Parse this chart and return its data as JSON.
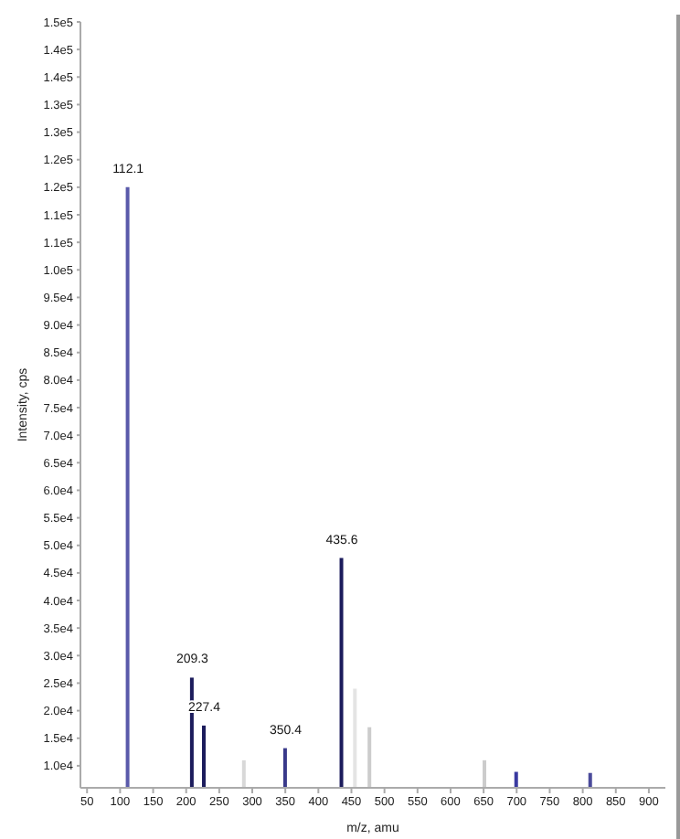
{
  "chart_data": {
    "type": "bar",
    "xlabel": "m/z, amu",
    "ylabel": "Intensity, cps",
    "x": [
      112.1,
      209.3,
      227.4,
      288,
      350.4,
      435.6,
      456,
      478,
      652,
      700,
      812
    ],
    "values": [
      115000,
      26000,
      17300,
      11000,
      13200,
      47700,
      24000,
      17000,
      11000,
      8900,
      8700
    ],
    "colors": [
      "#5a5aaa",
      "#1c1c5c",
      "#1c1c5c",
      "#d8d8d8",
      "#3a3a8a",
      "#1c1c5c",
      "#e4e4e4",
      "#cccccc",
      "#cccccc",
      "#3a3aa0",
      "#4a4a9a"
    ],
    "annotations": [
      {
        "text": "112.1",
        "x": 112.1,
        "y": 115000
      },
      {
        "text": "209.3",
        "x": 209.3,
        "y": 26000
      },
      {
        "text": "227.4",
        "x": 227.4,
        "y": 17300
      },
      {
        "text": "350.4",
        "x": 350.4,
        "y": 13200
      },
      {
        "text": "435.6",
        "x": 435.6,
        "y": 47700
      }
    ],
    "xlim": [
      40,
      925
    ],
    "xticks": [
      50,
      100,
      150,
      200,
      250,
      300,
      350,
      400,
      450,
      500,
      550,
      600,
      650,
      700,
      750,
      800,
      850,
      900
    ],
    "ylim": [
      6000,
      145000
    ],
    "yticks": [
      {
        "value": 10000,
        "label": "1.0e4"
      },
      {
        "value": 15000,
        "label": "1.5e4"
      },
      {
        "value": 20000,
        "label": "2.0e4"
      },
      {
        "value": 25000,
        "label": "2.5e4"
      },
      {
        "value": 30000,
        "label": "3.0e4"
      },
      {
        "value": 35000,
        "label": "3.5e4"
      },
      {
        "value": 40000,
        "label": "4.0e4"
      },
      {
        "value": 45000,
        "label": "4.5e4"
      },
      {
        "value": 50000,
        "label": "5.0e4"
      },
      {
        "value": 55000,
        "label": "5.5e4"
      },
      {
        "value": 60000,
        "label": "6.0e4"
      },
      {
        "value": 65000,
        "label": "6.5e4"
      },
      {
        "value": 70000,
        "label": "7.0e4"
      },
      {
        "value": 75000,
        "label": "7.5e4"
      },
      {
        "value": 80000,
        "label": "8.0e4"
      },
      {
        "value": 85000,
        "label": "8.5e4"
      },
      {
        "value": 90000,
        "label": "9.0e4"
      },
      {
        "value": 95000,
        "label": "9.5e4"
      },
      {
        "value": 100000,
        "label": "1.0e5"
      },
      {
        "value": 105000,
        "label": "1.1e5"
      },
      {
        "value": 110000,
        "label": "1.1e5"
      },
      {
        "value": 115000,
        "label": "1.2e5"
      },
      {
        "value": 120000,
        "label": "1.2e5"
      },
      {
        "value": 125000,
        "label": "1.3e5"
      },
      {
        "value": 130000,
        "label": "1.3e5"
      },
      {
        "value": 135000,
        "label": "1.4e5"
      },
      {
        "value": 140000,
        "label": "1.4e5"
      },
      {
        "value": 145000,
        "label": "1.5e5"
      }
    ],
    "grid": false,
    "legend": false
  }
}
